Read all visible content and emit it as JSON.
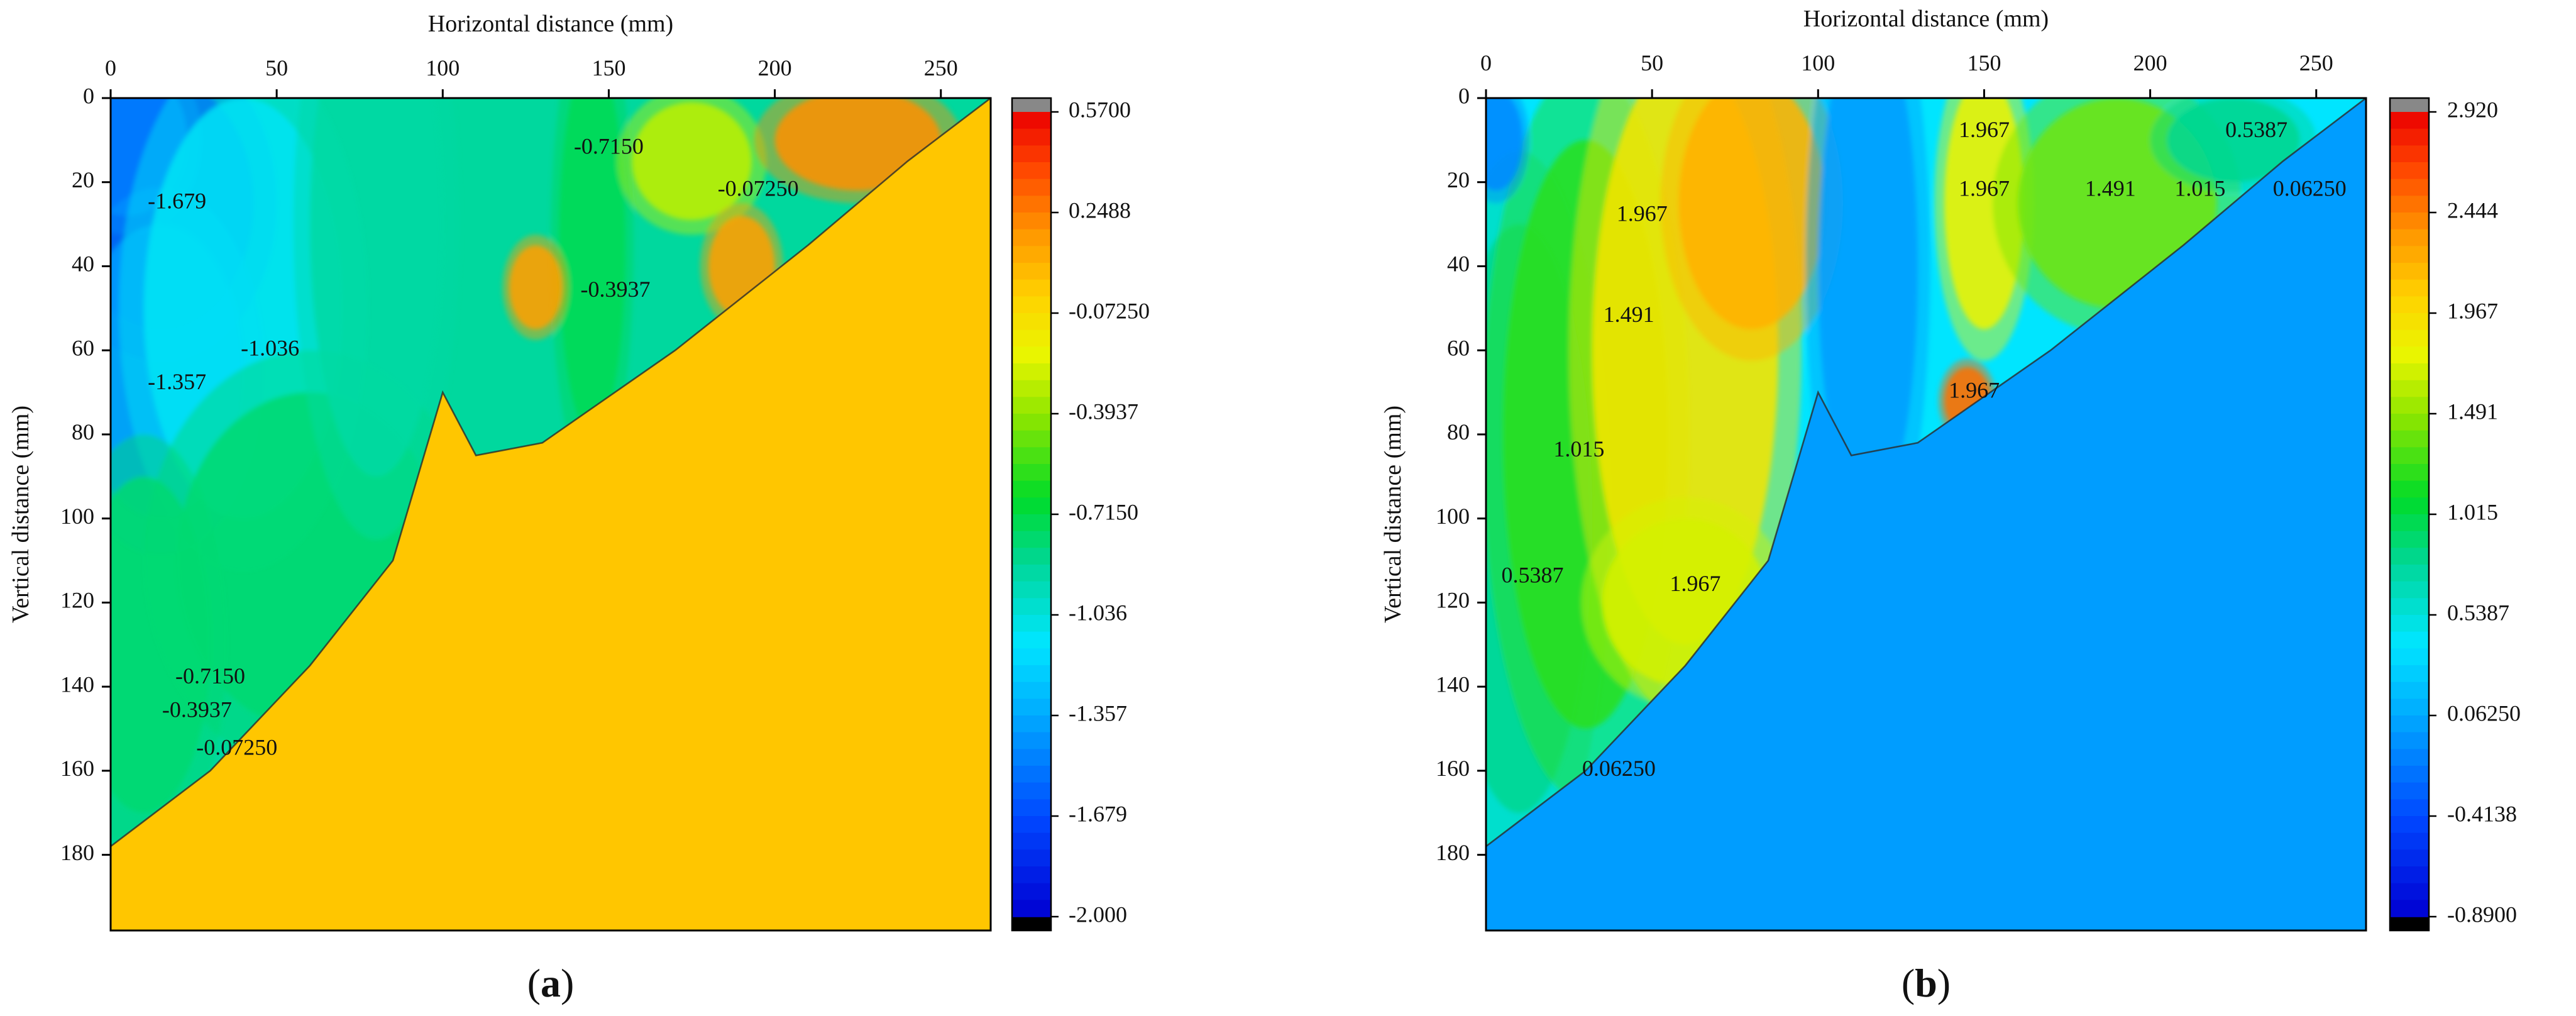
{
  "chart_data": [
    {
      "panel_label": "a",
      "type": "heatmap",
      "xlabel": "Horizontal distance (mm)",
      "ylabel": "Vertical distance (mm)",
      "xlim": [
        0,
        265
      ],
      "ylim": [
        0,
        198
      ],
      "x_ticks": [
        0,
        50,
        100,
        150,
        200,
        250
      ],
      "y_ticks": [
        0,
        20,
        40,
        60,
        80,
        100,
        120,
        140,
        160,
        180
      ],
      "y_axis_inverted": true,
      "x_axis_position": "top",
      "colorbar": {
        "min": -2.0,
        "max": 0.57,
        "ticks": [
          "0.5700",
          "0.2488",
          "-0.07250",
          "-0.3937",
          "-0.7150",
          "-1.036",
          "-1.357",
          "-1.679",
          "-2.000"
        ],
        "over_color": "#888888",
        "under_color": "#000000"
      },
      "background_value": 0.02,
      "background_region": "lower-right triangle below boundary",
      "boundary": [
        [
          0,
          178
        ],
        [
          30,
          160
        ],
        [
          60,
          135
        ],
        [
          85,
          110
        ],
        [
          100,
          70
        ],
        [
          110,
          85
        ],
        [
          130,
          82
        ],
        [
          170,
          60
        ],
        [
          210,
          35
        ],
        [
          240,
          15
        ],
        [
          265,
          0
        ]
      ],
      "blobs": [
        {
          "x": 15,
          "y": 25,
          "rx": 28,
          "ry": 30,
          "v": -1.8
        },
        {
          "x": 5,
          "y": 10,
          "rx": 18,
          "ry": 18,
          "v": -1.5
        },
        {
          "x": 15,
          "y": 65,
          "rx": 25,
          "ry": 35,
          "v": -1.4
        },
        {
          "x": 40,
          "y": 50,
          "rx": 30,
          "ry": 50,
          "v": -1.1
        },
        {
          "x": 60,
          "y": 110,
          "rx": 40,
          "ry": 40,
          "v": -0.8
        },
        {
          "x": 10,
          "y": 130,
          "rx": 20,
          "ry": 40,
          "v": -0.8
        },
        {
          "x": 80,
          "y": 30,
          "rx": 20,
          "ry": 60,
          "v": -0.9
        },
        {
          "x": 145,
          "y": 35,
          "rx": 10,
          "ry": 45,
          "v": -0.75
        },
        {
          "x": 175,
          "y": 15,
          "rx": 18,
          "ry": 14,
          "v": -0.3
        },
        {
          "x": 225,
          "y": 10,
          "rx": 25,
          "ry": 12,
          "v": 0.2
        },
        {
          "x": 190,
          "y": 40,
          "rx": 10,
          "ry": 12,
          "v": 0.15
        },
        {
          "x": 128,
          "y": 45,
          "rx": 8,
          "ry": 10,
          "v": 0.15
        }
      ],
      "contour_labels": [
        {
          "text": "-1.679",
          "x": 20,
          "y": 25
        },
        {
          "text": "-1.357",
          "x": 20,
          "y": 68
        },
        {
          "text": "-1.036",
          "x": 48,
          "y": 60
        },
        {
          "text": "-0.7150",
          "x": 150,
          "y": 12
        },
        {
          "text": "-0.07250",
          "x": 195,
          "y": 22
        },
        {
          "text": "-0.3937",
          "x": 152,
          "y": 46
        },
        {
          "text": "-0.7150",
          "x": 30,
          "y": 138
        },
        {
          "text": "-0.3937",
          "x": 26,
          "y": 146
        },
        {
          "text": "-0.07250",
          "x": 38,
          "y": 155
        }
      ]
    },
    {
      "panel_label": "b",
      "type": "heatmap",
      "xlabel": "Horizontal distance (mm)",
      "ylabel": "Vertical distance (mm)",
      "xlim": [
        0,
        265
      ],
      "ylim": [
        0,
        198
      ],
      "x_ticks": [
        0,
        50,
        100,
        150,
        200,
        250
      ],
      "y_ticks": [
        0,
        20,
        40,
        60,
        80,
        100,
        120,
        140,
        160,
        180
      ],
      "y_axis_inverted": true,
      "x_axis_position": "top",
      "colorbar": {
        "min": -0.89,
        "max": 2.92,
        "ticks": [
          "2.920",
          "2.444",
          "1.967",
          "1.491",
          "1.015",
          "0.5387",
          "0.06250",
          "-0.4138",
          "-0.8900"
        ],
        "over_color": "#888888",
        "under_color": "#000000"
      },
      "background_value": 0.0,
      "background_region": "lower-right triangle below boundary",
      "boundary": [
        [
          0,
          178
        ],
        [
          30,
          160
        ],
        [
          60,
          135
        ],
        [
          85,
          110
        ],
        [
          100,
          70
        ],
        [
          110,
          85
        ],
        [
          130,
          82
        ],
        [
          170,
          60
        ],
        [
          210,
          35
        ],
        [
          240,
          15
        ],
        [
          265,
          0
        ]
      ],
      "blobs": [
        {
          "x": 10,
          "y": 100,
          "rx": 22,
          "ry": 70,
          "v": 0.8
        },
        {
          "x": 30,
          "y": 80,
          "rx": 25,
          "ry": 70,
          "v": 1.2
        },
        {
          "x": 60,
          "y": 60,
          "rx": 28,
          "ry": 70,
          "v": 1.9
        },
        {
          "x": 80,
          "y": 25,
          "rx": 22,
          "ry": 30,
          "v": 2.2
        },
        {
          "x": 60,
          "y": 120,
          "rx": 25,
          "ry": 20,
          "v": 1.7
        },
        {
          "x": 115,
          "y": 40,
          "rx": 15,
          "ry": 60,
          "v": 0.0
        },
        {
          "x": 150,
          "y": 25,
          "rx": 12,
          "ry": 30,
          "v": 1.8
        },
        {
          "x": 145,
          "y": 72,
          "rx": 7,
          "ry": 8,
          "v": 2.5
        },
        {
          "x": 190,
          "y": 25,
          "rx": 30,
          "ry": 25,
          "v": 1.4
        },
        {
          "x": 225,
          "y": 10,
          "rx": 20,
          "ry": 10,
          "v": 0.8
        },
        {
          "x": 3,
          "y": 10,
          "rx": 8,
          "ry": 12,
          "v": -0.1
        }
      ],
      "contour_labels": [
        {
          "text": "1.967",
          "x": 150,
          "y": 8
        },
        {
          "text": "0.5387",
          "x": 232,
          "y": 8
        },
        {
          "text": "1.967",
          "x": 150,
          "y": 22
        },
        {
          "text": "1.491",
          "x": 188,
          "y": 22
        },
        {
          "text": "1.015",
          "x": 215,
          "y": 22
        },
        {
          "text": "0.06250",
          "x": 248,
          "y": 22
        },
        {
          "text": "1.967",
          "x": 47,
          "y": 28
        },
        {
          "text": "1.491",
          "x": 43,
          "y": 52
        },
        {
          "text": "1.967",
          "x": 147,
          "y": 70
        },
        {
          "text": "1.015",
          "x": 28,
          "y": 84
        },
        {
          "text": "0.5387",
          "x": 14,
          "y": 114
        },
        {
          "text": "1.967",
          "x": 63,
          "y": 116
        },
        {
          "text": "0.06250",
          "x": 40,
          "y": 160
        }
      ]
    }
  ]
}
